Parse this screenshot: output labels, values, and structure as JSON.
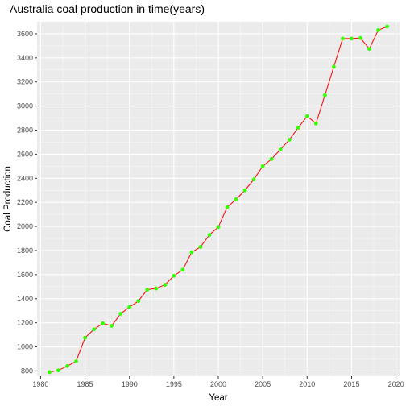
{
  "chart_data": {
    "type": "line",
    "title": "Australia coal production in time(years)",
    "xlabel": "Year",
    "ylabel": "Coal Production",
    "xlim": [
      1979.6,
      2020.4
    ],
    "ylim": [
      756,
      3700
    ],
    "x_ticks": [
      1980,
      1985,
      1990,
      1995,
      2000,
      2005,
      2010,
      2015,
      2020
    ],
    "y_ticks": [
      800,
      1000,
      1200,
      1400,
      1600,
      1800,
      2000,
      2200,
      2400,
      2600,
      2800,
      3000,
      3200,
      3400,
      3600
    ],
    "grid": true,
    "legend": "none",
    "colors": {
      "line": "#ff0000",
      "points": "#33ff00",
      "panel": "#ebebeb",
      "grid_major": "#ffffff"
    },
    "series": [
      {
        "x": [
          1981,
          1982,
          1983,
          1984,
          1985,
          1986,
          1987,
          1988,
          1989,
          1990,
          1991,
          1992,
          1993,
          1994,
          1995,
          1996,
          1997,
          1998,
          1999,
          2000,
          2001,
          2002,
          2003,
          2004,
          2005,
          2006,
          2007,
          2008,
          2009,
          2010,
          2011,
          2012,
          2013,
          2014,
          2015,
          2016,
          2017,
          2018,
          2019
        ],
        "y": [
          790,
          805,
          840,
          880,
          1075,
          1145,
          1195,
          1175,
          1275,
          1330,
          1380,
          1475,
          1485,
          1515,
          1590,
          1640,
          1785,
          1830,
          1930,
          1995,
          2160,
          2225,
          2300,
          2390,
          2500,
          2560,
          2640,
          2720,
          2820,
          2915,
          2855,
          3090,
          3325,
          3560,
          3560,
          3565,
          3475,
          3630,
          3660
        ]
      }
    ]
  }
}
